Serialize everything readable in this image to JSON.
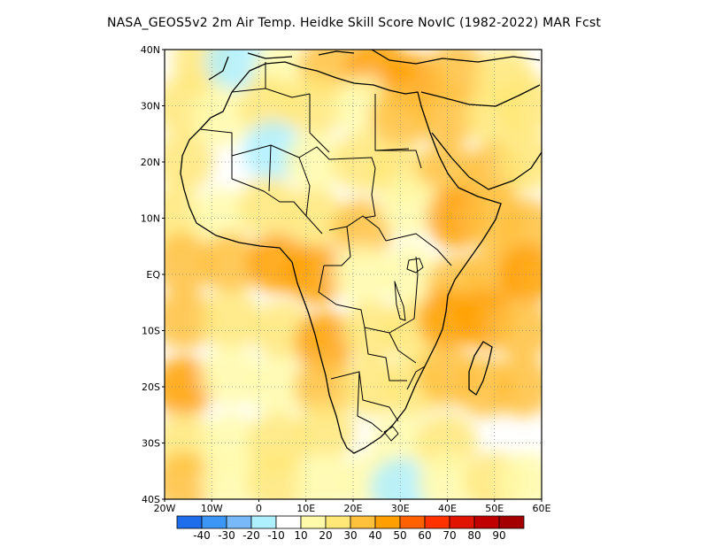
{
  "title": "NASA_GEOS5v2  2m Air Temp. Heidke Skill Score NovIC (1982-2022) MAR Fcst",
  "map": {
    "lon_range": [
      -20,
      60
    ],
    "lat_range": [
      -40,
      40
    ],
    "lat_ticks": [
      {
        "value": 40,
        "label": "40N"
      },
      {
        "value": 30,
        "label": "30N"
      },
      {
        "value": 20,
        "label": "20N"
      },
      {
        "value": 10,
        "label": "10N"
      },
      {
        "value": 0,
        "label": "EQ"
      },
      {
        "value": -10,
        "label": "10S"
      },
      {
        "value": -20,
        "label": "20S"
      },
      {
        "value": -30,
        "label": "30S"
      },
      {
        "value": -40,
        "label": "40S"
      }
    ],
    "lon_ticks": [
      {
        "value": -20,
        "label": "20W"
      },
      {
        "value": -10,
        "label": "10W"
      },
      {
        "value": 0,
        "label": "0"
      },
      {
        "value": 10,
        "label": "10E"
      },
      {
        "value": 20,
        "label": "20E"
      },
      {
        "value": 30,
        "label": "30E"
      },
      {
        "value": 40,
        "label": "40E"
      },
      {
        "value": 50,
        "label": "50E"
      },
      {
        "value": 60,
        "label": "60E"
      }
    ],
    "grid_lines": "dotted"
  },
  "colorbar": {
    "bins": [
      {
        "color": "#1e6eeb"
      },
      {
        "color": "#3c96f5"
      },
      {
        "color": "#78b9fa"
      },
      {
        "color": "#aff0ff"
      },
      {
        "color": "#ffffff"
      },
      {
        "color": "#fffaaa"
      },
      {
        "color": "#ffe878"
      },
      {
        "color": "#ffc03c"
      },
      {
        "color": "#ffa000"
      },
      {
        "color": "#ff6000"
      },
      {
        "color": "#ff3200"
      },
      {
        "color": "#e11400"
      },
      {
        "color": "#c00000"
      },
      {
        "color": "#a50000"
      }
    ],
    "labels": [
      "-40",
      "-30",
      "-20",
      "-10",
      "10",
      "20",
      "30",
      "40",
      "50",
      "60",
      "70",
      "80",
      "90"
    ]
  },
  "regions": [
    {
      "lon": -12,
      "lat": 38,
      "value": 20
    },
    {
      "lon": -5,
      "lat": 38,
      "value": -20
    },
    {
      "lon": 5,
      "lat": 36,
      "value": 10
    },
    {
      "lon": 15,
      "lat": 37,
      "value": 30
    },
    {
      "lon": 25,
      "lat": 37,
      "value": 40
    },
    {
      "lon": 33,
      "lat": 34,
      "value": 40
    },
    {
      "lon": 42,
      "lat": 36,
      "value": 30
    },
    {
      "lon": 52,
      "lat": 35,
      "value": 20
    },
    {
      "lon": -16,
      "lat": 30,
      "value": 20
    },
    {
      "lon": -8,
      "lat": 28,
      "value": 10
    },
    {
      "lon": 2,
      "lat": 30,
      "value": 20
    },
    {
      "lon": 12,
      "lat": 30,
      "value": 20
    },
    {
      "lon": 22,
      "lat": 30,
      "value": 10
    },
    {
      "lon": 30,
      "lat": 28,
      "value": 30
    },
    {
      "lon": 40,
      "lat": 28,
      "value": 30
    },
    {
      "lon": 50,
      "lat": 28,
      "value": 20
    },
    {
      "lon": 57,
      "lat": 30,
      "value": 20
    },
    {
      "lon": -16,
      "lat": 20,
      "value": 20
    },
    {
      "lon": -6,
      "lat": 20,
      "value": -10
    },
    {
      "lon": 3,
      "lat": 22,
      "value": -20
    },
    {
      "lon": 12,
      "lat": 20,
      "value": 10
    },
    {
      "lon": 22,
      "lat": 20,
      "value": 20
    },
    {
      "lon": 30,
      "lat": 18,
      "value": 20
    },
    {
      "lon": 40,
      "lat": 18,
      "value": 30
    },
    {
      "lon": 50,
      "lat": 18,
      "value": 30
    },
    {
      "lon": 57,
      "lat": 20,
      "value": 20
    },
    {
      "lon": -18,
      "lat": 10,
      "value": 20
    },
    {
      "lon": -8,
      "lat": 10,
      "value": 10
    },
    {
      "lon": 2,
      "lat": 12,
      "value": 20
    },
    {
      "lon": 12,
      "lat": 10,
      "value": 20
    },
    {
      "lon": 22,
      "lat": 8,
      "value": 30
    },
    {
      "lon": 32,
      "lat": 12,
      "value": 10
    },
    {
      "lon": 42,
      "lat": 10,
      "value": 40
    },
    {
      "lon": 50,
      "lat": 10,
      "value": 30
    },
    {
      "lon": 57,
      "lat": 8,
      "value": 30
    },
    {
      "lon": -16,
      "lat": 2,
      "value": 30
    },
    {
      "lon": -6,
      "lat": 2,
      "value": 30
    },
    {
      "lon": 4,
      "lat": 2,
      "value": 40
    },
    {
      "lon": 12,
      "lat": 0,
      "value": 40
    },
    {
      "lon": 22,
      "lat": 0,
      "value": 10
    },
    {
      "lon": 32,
      "lat": 0,
      "value": 10
    },
    {
      "lon": 42,
      "lat": -2,
      "value": 30
    },
    {
      "lon": 50,
      "lat": 0,
      "value": 30
    },
    {
      "lon": 57,
      "lat": 0,
      "value": 40
    },
    {
      "lon": -16,
      "lat": -8,
      "value": 30
    },
    {
      "lon": -6,
      "lat": -8,
      "value": 20
    },
    {
      "lon": 5,
      "lat": -10,
      "value": 20
    },
    {
      "lon": 14,
      "lat": -12,
      "value": 40
    },
    {
      "lon": 24,
      "lat": -10,
      "value": 20
    },
    {
      "lon": 33,
      "lat": -10,
      "value": 20
    },
    {
      "lon": 40,
      "lat": -8,
      "value": 40
    },
    {
      "lon": 48,
      "lat": -8,
      "value": 40
    },
    {
      "lon": 56,
      "lat": -10,
      "value": 30
    },
    {
      "lon": -16,
      "lat": -20,
      "value": 40
    },
    {
      "lon": -6,
      "lat": -18,
      "value": 10
    },
    {
      "lon": 4,
      "lat": -20,
      "value": 10
    },
    {
      "lon": 14,
      "lat": -20,
      "value": 30
    },
    {
      "lon": 24,
      "lat": -20,
      "value": 20
    },
    {
      "lon": 33,
      "lat": -20,
      "value": 20
    },
    {
      "lon": 40,
      "lat": -18,
      "value": 30
    },
    {
      "lon": 48,
      "lat": -20,
      "value": 30
    },
    {
      "lon": 56,
      "lat": -20,
      "value": 30
    },
    {
      "lon": -16,
      "lat": -30,
      "value": 20
    },
    {
      "lon": -6,
      "lat": -30,
      "value": 10
    },
    {
      "lon": 4,
      "lat": -30,
      "value": 20
    },
    {
      "lon": 14,
      "lat": -28,
      "value": 20
    },
    {
      "lon": 22,
      "lat": -30,
      "value": -10
    },
    {
      "lon": 30,
      "lat": -30,
      "value": 10
    },
    {
      "lon": 40,
      "lat": -30,
      "value": 20
    },
    {
      "lon": 48,
      "lat": -30,
      "value": -10
    },
    {
      "lon": 56,
      "lat": -30,
      "value": -10
    },
    {
      "lon": -16,
      "lat": -37,
      "value": 30
    },
    {
      "lon": -6,
      "lat": -37,
      "value": 10
    },
    {
      "lon": 4,
      "lat": -37,
      "value": 20
    },
    {
      "lon": 14,
      "lat": -37,
      "value": 10
    },
    {
      "lon": 24,
      "lat": -37,
      "value": 10
    },
    {
      "lon": 30,
      "lat": -38,
      "value": -20
    },
    {
      "lon": 40,
      "lat": -37,
      "value": 10
    },
    {
      "lon": 50,
      "lat": -37,
      "value": 20
    },
    {
      "lon": 57,
      "lat": -37,
      "value": 10
    }
  ]
}
